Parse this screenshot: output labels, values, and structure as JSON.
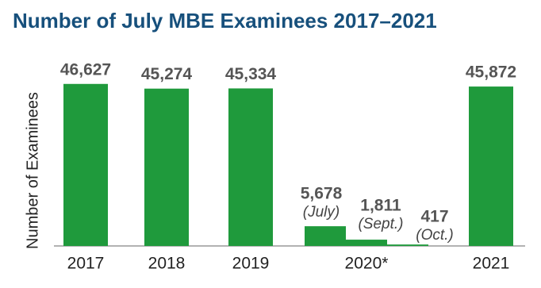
{
  "chart_data": {
    "type": "bar",
    "title": "Number of July MBE Examinees 2017–2021",
    "y_label": "Number of Examinees",
    "categories": [
      "2017",
      "2018",
      "2019",
      "2020*",
      "2021"
    ],
    "values": [
      [
        46627
      ],
      [
        45274
      ],
      [
        45334
      ],
      [
        5678,
        1811,
        417
      ],
      [
        45872
      ]
    ],
    "value_labels": [
      [
        "46,627"
      ],
      [
        "45,274"
      ],
      [
        "45,334"
      ],
      [
        "5,678",
        "1,811",
        "417"
      ],
      [
        "45,872"
      ]
    ],
    "bar_notes": [
      [],
      [],
      [],
      [
        "(July)",
        "(Sept.)",
        "(Oct.)"
      ],
      []
    ],
    "color": "#1f9a3c",
    "ylim": [
      0,
      50000
    ]
  }
}
